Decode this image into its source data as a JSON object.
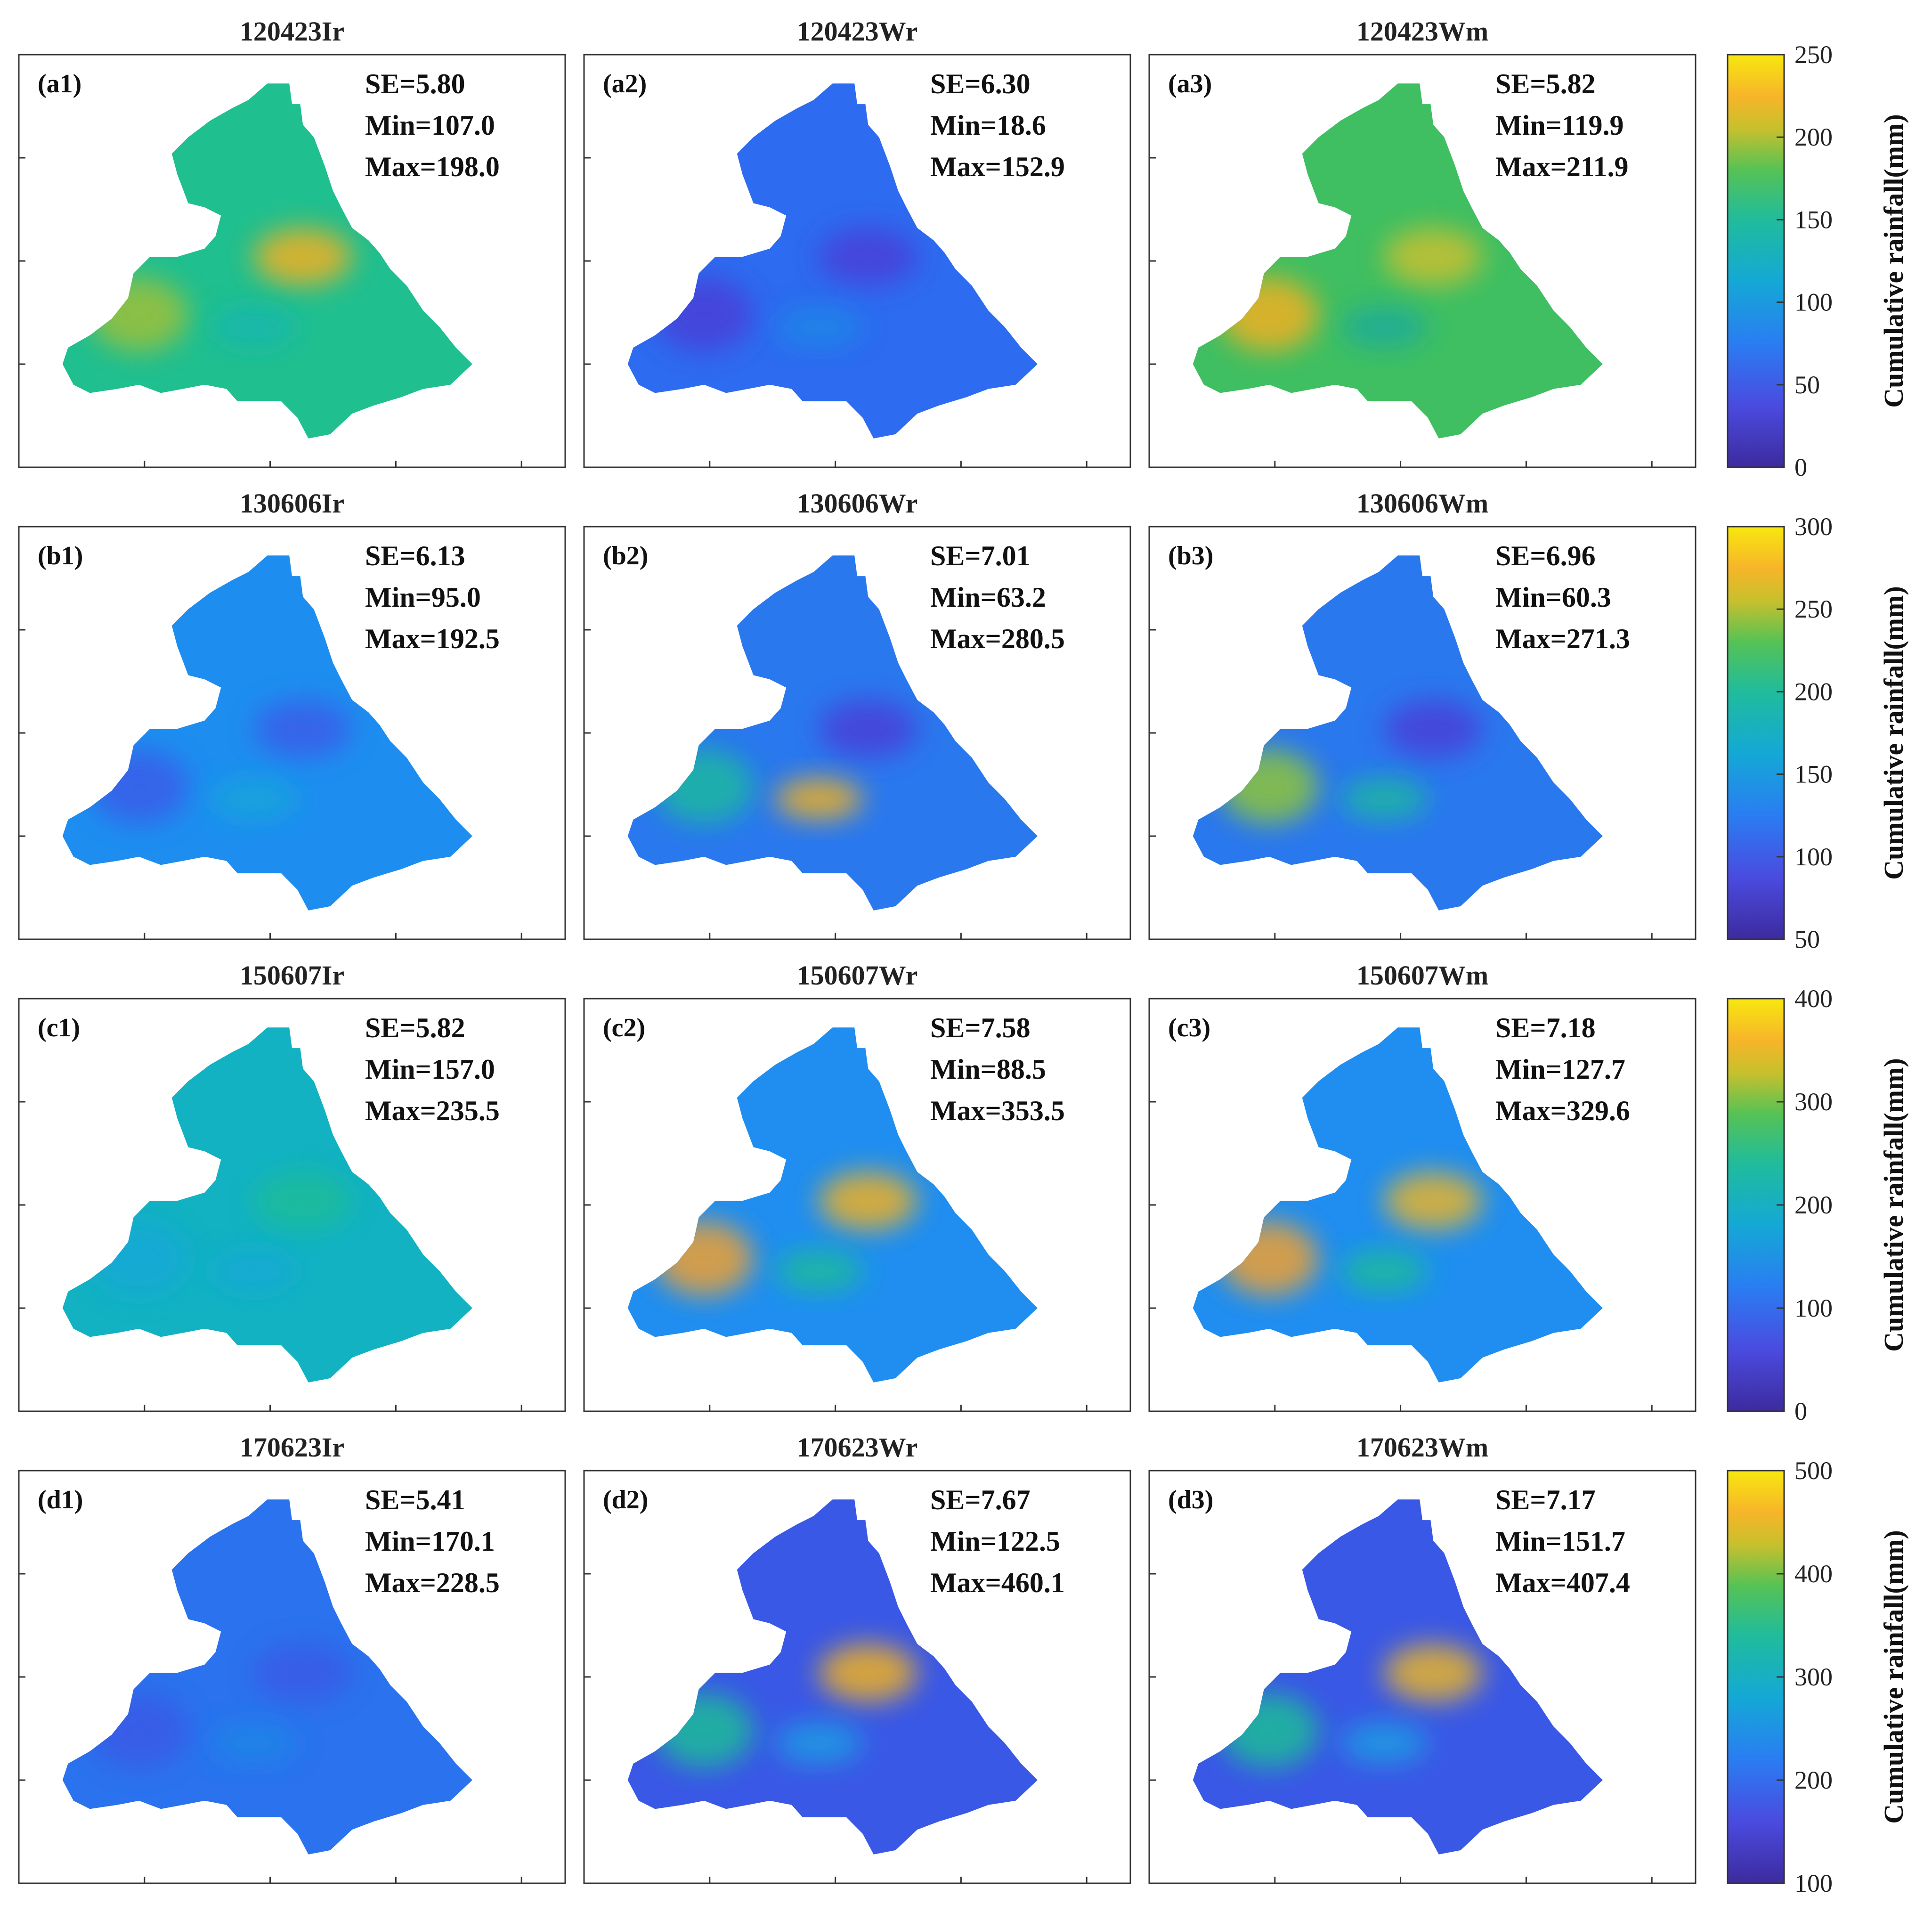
{
  "figure": {
    "colorbar_label": "Cumulative rainfall(mm)",
    "rows": [
      {
        "colorbar": {
          "ticks": [
            "0",
            "50",
            "100",
            "150",
            "200",
            "250"
          ],
          "range": [
            0,
            250
          ]
        },
        "panels": [
          {
            "title": "120423Ir",
            "label": "(a1)",
            "se": "SE=5.80",
            "min": "Min=107.0",
            "max": "Max=198.0",
            "fill": "#20bf8f",
            "blobs": [
              {
                "c": "#f0b020"
              },
              {
                "c": "#9dc03a"
              },
              {
                "c": "#14b6b0"
              }
            ]
          },
          {
            "title": "120423Wr",
            "label": "(a2)",
            "se": "SE=6.30",
            "min": "Min=18.6",
            "max": "Max=152.9",
            "fill": "#2d6bf0",
            "blobs": [
              {
                "c": "#4a3fd8"
              },
              {
                "c": "#4a3fd8"
              },
              {
                "c": "#1f86e6"
              }
            ]
          },
          {
            "title": "120423Wm",
            "label": "(a3)",
            "se": "SE=5.82",
            "min": "Min=119.9",
            "max": "Max=211.9",
            "fill": "#3fbf62",
            "blobs": [
              {
                "c": "#c8c030"
              },
              {
                "c": "#f0b020"
              },
              {
                "c": "#1aaa9b"
              }
            ]
          }
        ]
      },
      {
        "colorbar": {
          "ticks": [
            "50",
            "100",
            "150",
            "200",
            "250",
            "300"
          ],
          "range": [
            50,
            300
          ]
        },
        "panels": [
          {
            "title": "130606Ir",
            "label": "(b1)",
            "se": "SE=6.13",
            "min": "Min=95.0",
            "max": "Max=192.5",
            "fill": "#1d8ef0",
            "blobs": [
              {
                "c": "#3a5de8"
              },
              {
                "c": "#3a5de8"
              },
              {
                "c": "#16a6d8"
              }
            ]
          },
          {
            "title": "130606Wr",
            "label": "(b2)",
            "se": "SE=7.01",
            "min": "Min=63.2",
            "max": "Max=280.5",
            "fill": "#2a78ee",
            "blobs": [
              {
                "c": "#4a3fd8"
              },
              {
                "c": "#1cb8a0"
              },
              {
                "c": "#f0b020"
              }
            ]
          },
          {
            "title": "130606Wm",
            "label": "(b3)",
            "se": "SE=6.96",
            "min": "Min=60.3",
            "max": "Max=271.3",
            "fill": "#2a78ee",
            "blobs": [
              {
                "c": "#4a3fd8"
              },
              {
                "c": "#8ec43a"
              },
              {
                "c": "#1cb8a0"
              }
            ]
          }
        ]
      },
      {
        "colorbar": {
          "ticks": [
            "0",
            "100",
            "200",
            "300",
            "400"
          ],
          "range": [
            0,
            400
          ]
        },
        "panels": [
          {
            "title": "150607Ir",
            "label": "(c1)",
            "se": "SE=5.82",
            "min": "Min=157.0",
            "max": "Max=235.5",
            "fill": "#12b2c2",
            "blobs": [
              {
                "c": "#1cbc98"
              },
              {
                "c": "#14a8d6"
              },
              {
                "c": "#14a8d6"
              }
            ]
          },
          {
            "title": "150607Wr",
            "label": "(c2)",
            "se": "SE=7.58",
            "min": "Min=88.5",
            "max": "Max=353.5",
            "fill": "#1f8ef0",
            "blobs": [
              {
                "c": "#f0b020"
              },
              {
                "c": "#f0a030"
              },
              {
                "c": "#1cbc98"
              }
            ]
          },
          {
            "title": "150607Wm",
            "label": "(c3)",
            "se": "SE=7.18",
            "min": "Min=127.7",
            "max": "Max=329.6",
            "fill": "#1f8ef0",
            "blobs": [
              {
                "c": "#e8b42a"
              },
              {
                "c": "#f0a030"
              },
              {
                "c": "#1cbc98"
              }
            ]
          }
        ]
      },
      {
        "colorbar": {
          "ticks": [
            "100",
            "200",
            "300",
            "400",
            "500"
          ],
          "range": [
            100,
            500
          ]
        },
        "panels": [
          {
            "title": "170623Ir",
            "label": "(d1)",
            "se": "SE=5.41",
            "min": "Min=170.1",
            "max": "Max=228.5",
            "fill": "#2a72ee",
            "blobs": [
              {
                "c": "#3a5ae6"
              },
              {
                "c": "#3a5ae6"
              },
              {
                "c": "#1f86e6"
              }
            ]
          },
          {
            "title": "170623Wr",
            "label": "(d2)",
            "se": "SE=7.67",
            "min": "Min=122.5",
            "max": "Max=460.1",
            "fill": "#3a58e6",
            "blobs": [
              {
                "c": "#f0b020"
              },
              {
                "c": "#1cbc98"
              },
              {
                "c": "#1a9ee2"
              }
            ]
          },
          {
            "title": "170623Wm",
            "label": "(d3)",
            "se": "SE=7.17",
            "min": "Min=151.7",
            "max": "Max=407.4",
            "fill": "#3a58e6",
            "blobs": [
              {
                "c": "#e8b42a"
              },
              {
                "c": "#1cbc98"
              },
              {
                "c": "#1a9ee2"
              }
            ]
          }
        ]
      }
    ]
  }
}
